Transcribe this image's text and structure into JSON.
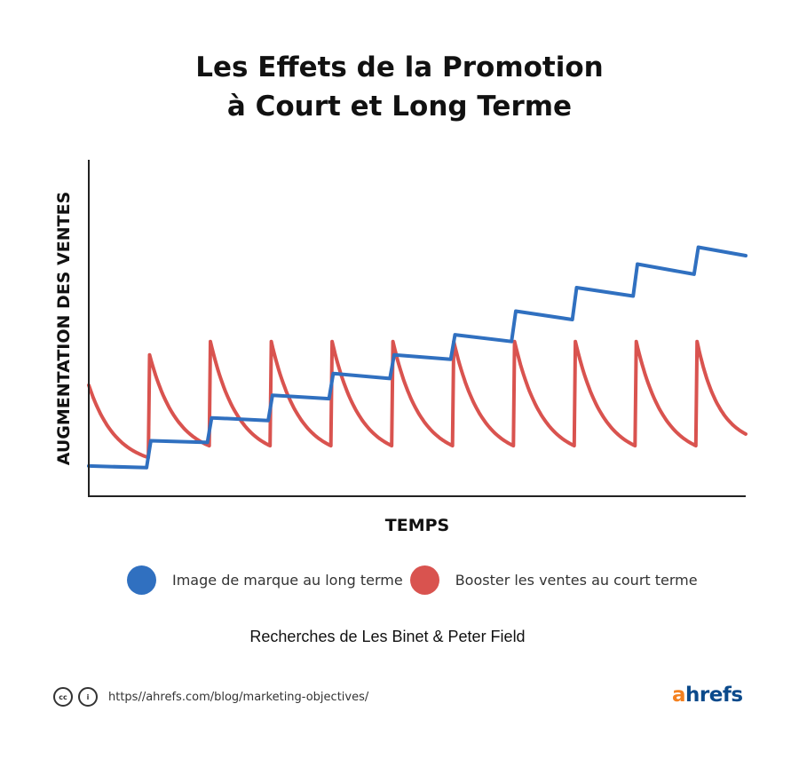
{
  "title": {
    "line1": "Les Effets de la Promotion",
    "line2": "à Court et Long Terme"
  },
  "chart_data": {
    "type": "line",
    "title": "Les Effets de la Promotion à Court et Long Terme",
    "xlabel": "TEMPS",
    "ylabel": "AUGMENTATION DES VENTES",
    "xlim": [
      0,
      10.8
    ],
    "ylim": [
      0,
      10
    ],
    "grid": false,
    "legend_position": "bottom",
    "series": [
      {
        "name": "Image de marque au long terme",
        "color": "#3070c0",
        "points": [
          [
            0,
            0.9
          ],
          [
            0.95,
            0.85
          ],
          [
            1.02,
            1.65
          ],
          [
            1.95,
            1.6
          ],
          [
            2.02,
            2.33
          ],
          [
            2.95,
            2.25
          ],
          [
            3.02,
            3.0
          ],
          [
            3.95,
            2.9
          ],
          [
            4.02,
            3.65
          ],
          [
            4.95,
            3.5
          ],
          [
            5.02,
            4.2
          ],
          [
            5.95,
            4.07
          ],
          [
            6.02,
            4.8
          ],
          [
            6.95,
            4.6
          ],
          [
            7.02,
            5.5
          ],
          [
            7.95,
            5.25
          ],
          [
            8.02,
            6.2
          ],
          [
            8.95,
            5.95
          ],
          [
            9.02,
            6.9
          ],
          [
            9.95,
            6.6
          ],
          [
            10.02,
            7.4
          ],
          [
            10.8,
            7.15
          ]
        ]
      },
      {
        "name": "Booster les ventes au court terme",
        "color": "#d9534f",
        "cycle_peaks": [
          0,
          1.0,
          2.0,
          3.0,
          4.0,
          5.0,
          6.0,
          7.0,
          8.0,
          9.0,
          10.0
        ],
        "peak_values": [
          3.3,
          4.2,
          4.6,
          4.6,
          4.6,
          4.6,
          4.6,
          4.6,
          4.6,
          4.6,
          4.6
        ],
        "trough_values": [
          1.15,
          1.5,
          1.5,
          1.5,
          1.5,
          1.5,
          1.5,
          1.5,
          1.5,
          1.5,
          1.85
        ]
      }
    ]
  },
  "legend": {
    "items": [
      {
        "label": "Image de marque au long terme",
        "color": "#3070c0"
      },
      {
        "label": "Booster les ventes au court terme",
        "color": "#d9534f"
      }
    ]
  },
  "source": "Recherches de Les Binet & Peter Field",
  "footer": {
    "cc_label": "cc",
    "by_label": "i",
    "url": "https//ahrefs.com/blog/marketing-objectives/",
    "brand_a": "a",
    "brand_rest": "hrefs",
    "brand_a_color": "#f48120",
    "brand_color": "#0b4a8b"
  }
}
